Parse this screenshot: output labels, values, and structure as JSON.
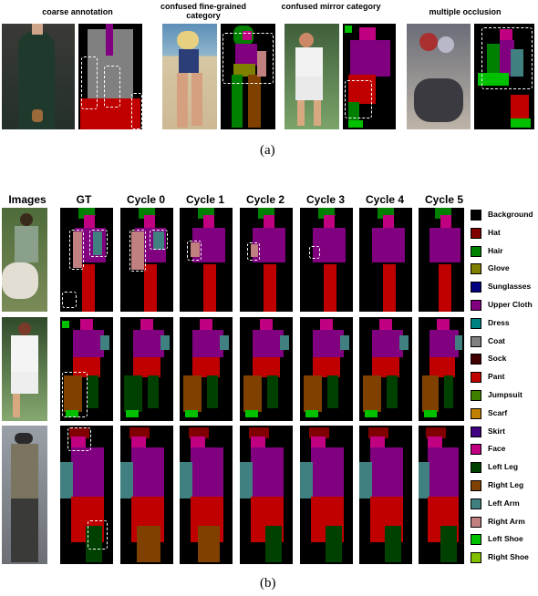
{
  "part_a": {
    "headers": [
      "coarse annotation",
      "confused fine-grained category",
      "confused mirror category",
      "multiple occlusion"
    ],
    "caption": "(a)"
  },
  "part_b": {
    "row_header": "Images",
    "columns": [
      "GT",
      "Cycle 0",
      "Cycle 1",
      "Cycle 2",
      "Cycle 3",
      "Cycle 4",
      "Cycle 5"
    ],
    "caption": "(b)"
  },
  "legend": [
    {
      "label": "Background",
      "color": "#000000"
    },
    {
      "label": "Hat",
      "color": "#800000"
    },
    {
      "label": "Hair",
      "color": "#008000"
    },
    {
      "label": "Glove",
      "color": "#808000"
    },
    {
      "label": "Sunglasses",
      "color": "#000080"
    },
    {
      "label": "Upper Cloth",
      "color": "#800080"
    },
    {
      "label": "Dress",
      "color": "#008080"
    },
    {
      "label": "Coat",
      "color": "#808080"
    },
    {
      "label": "Sock",
      "color": "#400000"
    },
    {
      "label": "Pant",
      "color": "#c00000"
    },
    {
      "label": "Jumpsuit",
      "color": "#408000"
    },
    {
      "label": "Scarf",
      "color": "#c08000"
    },
    {
      "label": "Skirt",
      "color": "#400080"
    },
    {
      "label": "Face",
      "color": "#c00080"
    },
    {
      "label": "Left Leg",
      "color": "#004000"
    },
    {
      "label": "Right Leg",
      "color": "#804000"
    },
    {
      "label": "Left Arm",
      "color": "#408080"
    },
    {
      "label": "Right Arm",
      "color": "#c08080"
    },
    {
      "label": "Left Shoe",
      "color": "#00c000"
    },
    {
      "label": "Right Shoe",
      "color": "#80c000"
    }
  ]
}
